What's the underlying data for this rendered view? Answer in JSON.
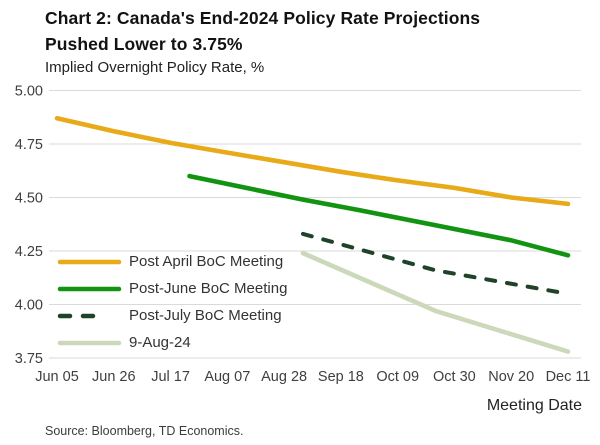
{
  "title_line1": "Chart 2: Canada's End-2024 Policy Rate Projections",
  "title_line2": "Pushed Lower to 3.75%",
  "subtitle": "Implied Overnight Policy Rate, %",
  "x_axis_label": "Meeting Date",
  "source_note": "Source: Bloomberg, TD Economics.",
  "colors": {
    "gold": "#E8AA18",
    "green": "#129412",
    "dark_green": "#1E4328",
    "light_green": "#CBD9BA",
    "gridline": "#DADADA",
    "axis_text": "#3F3F3F"
  },
  "chart_data": {
    "type": "line",
    "title": "Chart 2: Canada's End-2024 Policy Rate Projections Pushed Lower to 3.75%",
    "subtitle": "Implied Overnight Policy Rate, %",
    "xlabel": "Meeting Date",
    "ylabel": "",
    "ylim": [
      3.75,
      5.0
    ],
    "grid": "horizontal",
    "legend_position": "inside-lower-left",
    "y_ticks": [
      "5.00",
      "4.75",
      "4.50",
      "4.25",
      "4.00",
      "3.75"
    ],
    "x_tick_labels": [
      "Jun 05",
      "Jun 26",
      "Jul 17",
      "Aug 07",
      "Aug 28",
      "Sep 18",
      "Oct 09",
      "Oct 30",
      "Nov 20",
      "Dec 11"
    ],
    "x_tick_days": [
      0,
      21,
      42,
      63,
      84,
      105,
      126,
      147,
      168,
      189
    ],
    "x_unit": "days-from-Jun-05",
    "series": [
      {
        "name": "Post April BoC Meeting",
        "color": "#E8AA18",
        "dash": false,
        "points": [
          [
            0,
            4.87
          ],
          [
            21,
            4.81
          ],
          [
            42,
            4.755
          ],
          [
            63,
            4.71
          ],
          [
            84,
            4.665
          ],
          [
            105,
            4.62
          ],
          [
            126,
            4.58
          ],
          [
            147,
            4.545
          ],
          [
            168,
            4.5
          ],
          [
            189,
            4.47
          ]
        ]
      },
      {
        "name": "Post-June BoC Meeting",
        "color": "#129412",
        "dash": false,
        "points": [
          [
            49,
            4.6
          ],
          [
            70,
            4.545
          ],
          [
            91,
            4.49
          ],
          [
            112,
            4.44
          ],
          [
            140,
            4.37
          ],
          [
            168,
            4.3
          ],
          [
            189,
            4.23
          ]
        ]
      },
      {
        "name": "Post-July BoC Meeting",
        "color": "#1E4328",
        "dash": true,
        "points": [
          [
            91,
            4.33
          ],
          [
            140,
            4.16
          ],
          [
            189,
            4.05
          ]
        ]
      },
      {
        "name": "9-Aug-24",
        "color": "#CBD9BA",
        "dash": false,
        "points": [
          [
            91,
            4.24
          ],
          [
            140,
            3.97
          ],
          [
            189,
            3.78
          ]
        ]
      }
    ]
  }
}
